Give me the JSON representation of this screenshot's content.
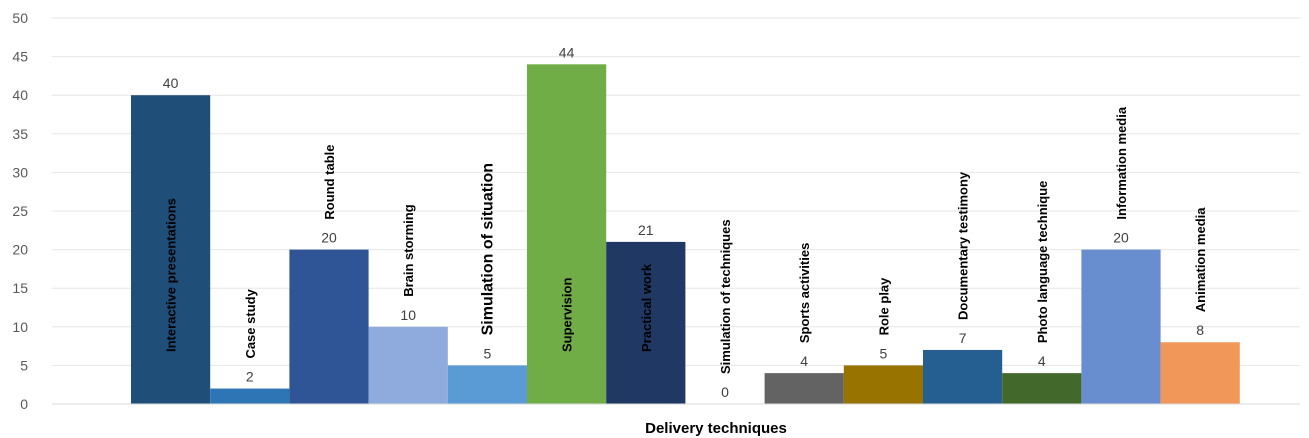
{
  "chart_data": {
    "type": "bar",
    "xlabel": "Delivery techniques",
    "ylabel": "",
    "ylim": [
      0,
      50
    ],
    "yticks": [
      0,
      5,
      10,
      15,
      20,
      25,
      30,
      35,
      40,
      45,
      50
    ],
    "grid": "horizontal",
    "categories": [
      "Interactive presentations",
      "Case study",
      "Round table",
      "Brain storming",
      "Simulation of situation",
      "Supervision",
      "Practical work",
      "Simulation of techniques",
      "Sports activities",
      "Role play",
      "Documentary testimony",
      "Photo language technique",
      "Information media",
      "Animation media"
    ],
    "values": [
      40,
      2,
      20,
      10,
      5,
      44,
      21,
      0,
      4,
      5,
      7,
      4,
      20,
      8
    ],
    "colors": [
      "#1f4e79",
      "#2e75b6",
      "#2f5597",
      "#8faadc",
      "#5b9bd5",
      "#70ad47",
      "#203864",
      "#bdd7ee",
      "#636363",
      "#997300",
      "#255e91",
      "#43682b",
      "#698ed0",
      "#f1975a"
    ]
  }
}
